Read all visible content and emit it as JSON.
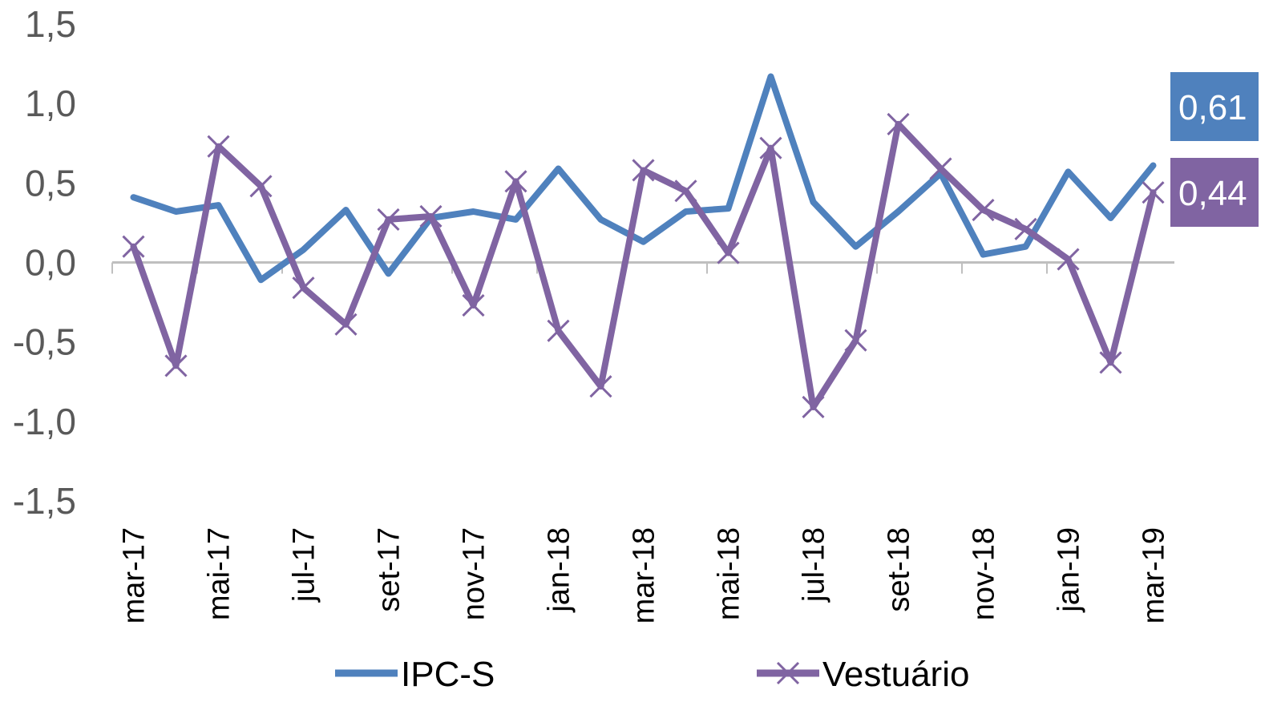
{
  "chart_data": {
    "type": "line",
    "x": [
      "mar-17",
      "abr-17",
      "mai-17",
      "jun-17",
      "jul-17",
      "ago-17",
      "set-17",
      "out-17",
      "nov-17",
      "dez-17",
      "jan-18",
      "fev-18",
      "mar-18",
      "abr-18",
      "mai-18",
      "jun-18",
      "jul-18",
      "ago-18",
      "set-18",
      "out-18",
      "nov-18",
      "dez-18",
      "jan-19",
      "fev-19",
      "mar-19"
    ],
    "x_tick_labels": [
      "mar-17",
      "mai-17",
      "jul-17",
      "set-17",
      "nov-17",
      "jan-18",
      "mar-18",
      "mai-18",
      "jul-18",
      "set-18",
      "nov-18",
      "jan-19",
      "mar-19"
    ],
    "y_tick_labels": [
      "1,5",
      "1,0",
      "0,5",
      "0,0",
      "-0,5",
      "-1,0",
      "-1,5"
    ],
    "ylim": [
      -1.5,
      1.5
    ],
    "series": [
      {
        "name": "IPC-S",
        "color": "#4F81BD",
        "marker": "none",
        "values": [
          0.41,
          0.32,
          0.36,
          -0.11,
          0.08,
          0.33,
          -0.07,
          0.28,
          0.32,
          0.27,
          0.59,
          0.27,
          0.13,
          0.32,
          0.34,
          1.17,
          0.38,
          0.1,
          0.32,
          0.56,
          0.05,
          0.1,
          0.57,
          0.28,
          0.61
        ]
      },
      {
        "name": "Vestuário",
        "color": "#8064A2",
        "marker": "x",
        "values": [
          0.1,
          -0.65,
          0.73,
          0.48,
          -0.16,
          -0.39,
          0.27,
          0.29,
          -0.27,
          0.51,
          -0.43,
          -0.78,
          0.58,
          0.45,
          0.06,
          0.72,
          -0.91,
          -0.49,
          0.87,
          0.59,
          0.33,
          0.21,
          0.02,
          -0.63,
          0.44
        ]
      }
    ],
    "end_labels": [
      {
        "series": "IPC-S",
        "text": "0,61",
        "color": "#4F81BD"
      },
      {
        "series": "Vestuário",
        "text": "0,44",
        "color": "#8064A2"
      }
    ],
    "legend_position": "bottom",
    "grid": false
  }
}
